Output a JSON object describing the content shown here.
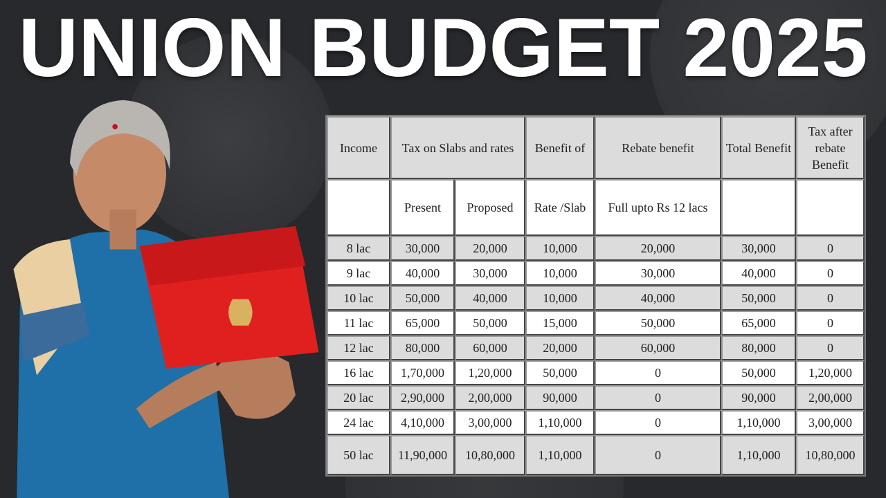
{
  "title": "UNION BUDGET 2025",
  "colors": {
    "background": "#2a2c2f",
    "title": "#ffffff",
    "folder": "#e0201f",
    "saree": "#1f6fa8"
  },
  "table": {
    "header": [
      "Income",
      "Tax on Slabs and rates",
      "Benefit of",
      "Rebate benefit",
      "Total Benefit",
      "Tax after rebate Benefit"
    ],
    "subheader": [
      "",
      "Present",
      "Proposed",
      "Rate /Slab",
      "Full upto Rs 12 lacs",
      "",
      ""
    ],
    "rows": [
      [
        "8 lac",
        "30,000",
        "20,000",
        "10,000",
        "20,000",
        "30,000",
        "0"
      ],
      [
        "9 lac",
        "40,000",
        "30,000",
        "10,000",
        "30,000",
        "40,000",
        "0"
      ],
      [
        "10 lac",
        "50,000",
        "40,000",
        "10,000",
        "40,000",
        "50,000",
        "0"
      ],
      [
        "11 lac",
        "65,000",
        "50,000",
        "15,000",
        "50,000",
        "65,000",
        "0"
      ],
      [
        "12 lac",
        "80,000",
        "60,000",
        "20,000",
        "60,000",
        "80,000",
        "0"
      ],
      [
        "16 lac",
        "1,70,000",
        "1,20,000",
        "50,000",
        "0",
        "50,000",
        "1,20,000"
      ],
      [
        "20 lac",
        "2,90,000",
        "2,00,000",
        "90,000",
        "0",
        "90,000",
        "2,00,000"
      ],
      [
        "24 lac",
        "4,10,000",
        "3,00,000",
        "1,10,000",
        "0",
        "1,10,000",
        "3,00,000"
      ],
      [
        "50 lac",
        "11,90,000",
        "10,80,000",
        "1,10,000",
        "0",
        "1,10,000",
        "10,80,000"
      ]
    ]
  }
}
